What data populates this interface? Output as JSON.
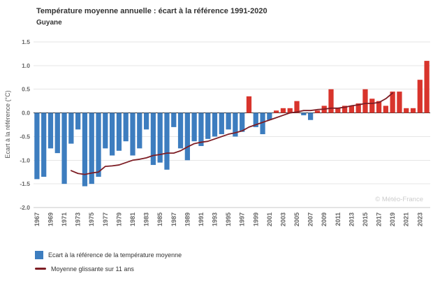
{
  "header": {
    "title": "Température moyenne annuelle : écart à la référence 1991-2020",
    "subtitle": "Guyane"
  },
  "y_axis_title": "Ecart à la référence (°C)",
  "watermark": "© Météo-France",
  "colors": {
    "bar_negative": "#3d7dbf",
    "bar_positive": "#d8342c",
    "running_mean": "#7d1d24",
    "grid": "#e6e6e6",
    "zero_line": "#333333",
    "tick_label": "#666666"
  },
  "legend": [
    {
      "type": "bar",
      "label": "Ecart à la référence de la température moyenne",
      "color": "#3d7dbf"
    },
    {
      "type": "line",
      "label": "Moyenne glissante sur 11 ans",
      "color": "#7d1d24"
    }
  ],
  "chart_data": {
    "type": "bar",
    "title": "Température moyenne annuelle : écart à la référence 1991-2020",
    "subtitle": "Guyane",
    "xlabel": "",
    "ylabel": "Ecart à la référence (°C)",
    "ylim": [
      -2.0,
      1.5
    ],
    "ytick_step": 0.5,
    "xtick_every": 2,
    "grid": true,
    "legend_position": "bottom-left",
    "x": [
      1967,
      1968,
      1969,
      1970,
      1971,
      1972,
      1973,
      1974,
      1975,
      1976,
      1977,
      1978,
      1979,
      1980,
      1981,
      1982,
      1983,
      1984,
      1985,
      1986,
      1987,
      1988,
      1989,
      1990,
      1991,
      1992,
      1993,
      1994,
      1995,
      1996,
      1997,
      1998,
      1999,
      2000,
      2001,
      2002,
      2003,
      2004,
      2005,
      2006,
      2007,
      2008,
      2009,
      2010,
      2011,
      2012,
      2013,
      2014,
      2015,
      2016,
      2017,
      2018,
      2019,
      2020,
      2021,
      2022,
      2023,
      2024
    ],
    "series": [
      {
        "name": "Ecart à la référence de la température moyenne",
        "type": "bar",
        "color_negative": "#3d7dbf",
        "color_positive": "#d8342c",
        "values": [
          -1.4,
          -1.35,
          -0.75,
          -0.85,
          -1.5,
          -0.65,
          -0.35,
          -1.55,
          -1.5,
          -1.35,
          -0.75,
          -0.9,
          -0.8,
          -0.6,
          -0.9,
          -0.75,
          -0.35,
          -1.1,
          -1.05,
          -1.2,
          -0.3,
          -0.75,
          -1.0,
          -0.6,
          -0.7,
          -0.55,
          -0.5,
          -0.45,
          -0.35,
          -0.5,
          -0.4,
          0.35,
          -0.3,
          -0.45,
          -0.15,
          0.05,
          0.1,
          0.1,
          0.25,
          -0.05,
          -0.15,
          0.05,
          0.15,
          0.5,
          0.1,
          0.15,
          0.15,
          0.2,
          0.5,
          0.3,
          0.25,
          0.15,
          0.45,
          0.45,
          0.1,
          0.1,
          0.7,
          1.1
        ]
      },
      {
        "name": "Moyenne glissante sur 11 ans",
        "type": "line",
        "color": "#7d1d24",
        "x": [
          1972,
          1973,
          1974,
          1975,
          1976,
          1977,
          1978,
          1979,
          1980,
          1981,
          1982,
          1983,
          1984,
          1985,
          1986,
          1987,
          1988,
          1989,
          1990,
          1991,
          1992,
          1993,
          1994,
          1995,
          1996,
          1997,
          1998,
          1999,
          2000,
          2001,
          2002,
          2003,
          2004,
          2005,
          2006,
          2007,
          2008,
          2009,
          2010,
          2011,
          2012,
          2013,
          2014,
          2015,
          2016,
          2017,
          2018,
          2019
        ],
        "values": [
          -1.22,
          -1.28,
          -1.3,
          -1.27,
          -1.25,
          -1.13,
          -1.12,
          -1.1,
          -1.05,
          -1.0,
          -0.98,
          -0.95,
          -0.9,
          -0.88,
          -0.85,
          -0.85,
          -0.8,
          -0.72,
          -0.65,
          -0.62,
          -0.6,
          -0.55,
          -0.5,
          -0.45,
          -0.42,
          -0.38,
          -0.3,
          -0.25,
          -0.2,
          -0.15,
          -0.1,
          -0.05,
          0.0,
          0.02,
          0.05,
          0.05,
          0.07,
          0.08,
          0.1,
          0.1,
          0.12,
          0.15,
          0.17,
          0.2,
          0.2,
          0.22,
          0.3,
          0.42
        ]
      }
    ]
  }
}
